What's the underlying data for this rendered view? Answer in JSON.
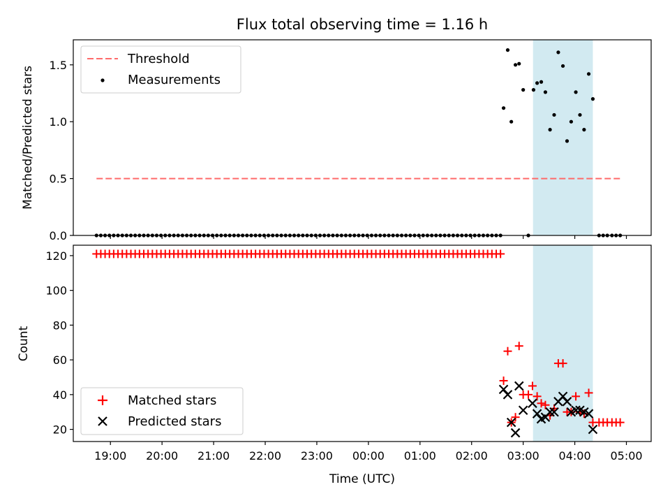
{
  "title": "Flux total observing time = 1.16 h",
  "chart_data": [
    {
      "type": "scatter",
      "panel": "top",
      "ylabel": "Matched/Predicted stars",
      "xlabel": "",
      "ylim": [
        0,
        1.72
      ],
      "yticks": [
        0.0,
        0.5,
        1.0,
        1.5
      ],
      "ytick_labels": [
        "0.0",
        "0.5",
        "1.0",
        "1.5"
      ],
      "threshold": {
        "name": "Threshold",
        "value": 0.5,
        "x_start": 18.73,
        "x_end": 28.88,
        "color": "#ff6a6a"
      },
      "series": [
        {
          "name": "Measurements",
          "color": "#000000",
          "zero_run": {
            "start": 18.73,
            "end": 26.57,
            "step": 0.0833,
            "value": 0
          },
          "points": [
            [
              26.62,
              1.12
            ],
            [
              26.7,
              1.63
            ],
            [
              26.77,
              1.0
            ],
            [
              26.85,
              1.5
            ],
            [
              26.92,
              1.51
            ],
            [
              27.0,
              1.28
            ],
            [
              27.1,
              0.0
            ],
            [
              27.2,
              1.28
            ],
            [
              27.27,
              1.34
            ],
            [
              27.35,
              1.35
            ],
            [
              27.43,
              1.26
            ],
            [
              27.52,
              0.93
            ],
            [
              27.6,
              1.06
            ],
            [
              27.68,
              1.61
            ],
            [
              27.77,
              1.49
            ],
            [
              27.85,
              0.83
            ],
            [
              27.93,
              1.0
            ],
            [
              28.02,
              1.26
            ],
            [
              28.1,
              1.06
            ],
            [
              28.18,
              0.93
            ],
            [
              28.27,
              1.42
            ],
            [
              28.35,
              1.2
            ],
            [
              28.47,
              0.0
            ],
            [
              28.55,
              0.0
            ],
            [
              28.63,
              0.0
            ],
            [
              28.72,
              0.0
            ],
            [
              28.8,
              0.0
            ],
            [
              28.88,
              0.0
            ]
          ]
        }
      ]
    },
    {
      "type": "scatter",
      "panel": "bottom",
      "ylabel": "Count",
      "xlabel": "Time (UTC)",
      "ylim": [
        13,
        126
      ],
      "yticks": [
        20,
        40,
        60,
        80,
        100,
        120
      ],
      "ytick_labels": [
        "20",
        "40",
        "60",
        "80",
        "100",
        "120"
      ],
      "series": [
        {
          "name": "Matched stars",
          "marker": "plus",
          "color": "#ff0000",
          "constant_run": {
            "start": 18.73,
            "end": 26.57,
            "step": 0.0833,
            "value": 121
          },
          "points": [
            [
              26.62,
              48
            ],
            [
              26.7,
              65
            ],
            [
              26.77,
              24
            ],
            [
              26.85,
              27
            ],
            [
              26.92,
              68
            ],
            [
              27.0,
              40
            ],
            [
              27.1,
              40
            ],
            [
              27.18,
              45
            ],
            [
              27.27,
              39
            ],
            [
              27.35,
              35
            ],
            [
              27.43,
              34
            ],
            [
              27.52,
              28
            ],
            [
              27.6,
              32
            ],
            [
              27.68,
              58
            ],
            [
              27.77,
              58
            ],
            [
              27.85,
              30
            ],
            [
              27.93,
              30
            ],
            [
              28.02,
              39
            ],
            [
              28.1,
              30
            ],
            [
              28.18,
              29
            ],
            [
              28.27,
              41
            ],
            [
              28.35,
              24
            ],
            [
              28.47,
              24
            ],
            [
              28.55,
              24
            ],
            [
              28.63,
              24
            ],
            [
              28.72,
              24
            ],
            [
              28.8,
              24
            ],
            [
              28.88,
              24
            ]
          ]
        },
        {
          "name": "Predicted stars",
          "marker": "x",
          "color": "#000000",
          "points": [
            [
              26.62,
              43
            ],
            [
              26.7,
              40
            ],
            [
              26.77,
              24
            ],
            [
              26.85,
              18
            ],
            [
              26.92,
              45
            ],
            [
              27.0,
              31
            ],
            [
              27.18,
              35
            ],
            [
              27.27,
              29
            ],
            [
              27.35,
              26
            ],
            [
              27.43,
              27
            ],
            [
              27.52,
              30
            ],
            [
              27.6,
              30
            ],
            [
              27.68,
              36
            ],
            [
              27.77,
              39
            ],
            [
              27.85,
              36
            ],
            [
              27.93,
              30
            ],
            [
              28.02,
              31
            ],
            [
              28.1,
              31
            ],
            [
              28.18,
              30
            ],
            [
              28.27,
              29
            ],
            [
              28.35,
              20
            ]
          ]
        }
      ]
    }
  ],
  "x_axis": {
    "range": [
      18.28,
      29.48
    ],
    "ticks": [
      19,
      20,
      21,
      22,
      23,
      24,
      25,
      26,
      27,
      28,
      29
    ],
    "tick_labels": [
      "19:00",
      "20:00",
      "21:00",
      "22:00",
      "23:00",
      "00:00",
      "01:00",
      "02:00",
      "03:00",
      "04:00",
      "05:00"
    ]
  },
  "highlight": {
    "x_start": 27.19,
    "x_end": 28.35,
    "color": "#add8e6"
  },
  "legend_top": {
    "placement": "top-left",
    "threshold_label": "Threshold",
    "measurements_label": "Measurements"
  },
  "legend_bottom": {
    "placement": "lower-left",
    "matched_label": "Matched stars",
    "predicted_label": "Predicted stars"
  }
}
